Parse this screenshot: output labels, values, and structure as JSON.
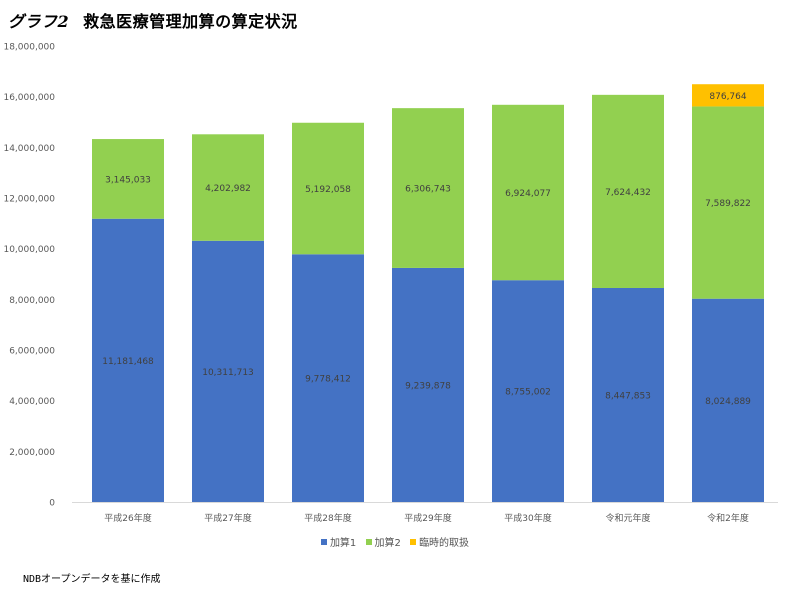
{
  "title_prefix": "グラフ2",
  "title_main": "救急医療管理加算の算定状況",
  "source_note": "NDBオープンデータを基に作成",
  "colors": {
    "kasan1": "#4472C4",
    "kasan2": "#92D050",
    "rinji": "#FFC000",
    "axis": "#D9D9D9",
    "tick_text": "#595959"
  },
  "chart_data": {
    "type": "bar",
    "stacked": true,
    "categories": [
      "平成26年度",
      "平成27年度",
      "平成28年度",
      "平成29年度",
      "平成30年度",
      "令和元年度",
      "令和2年度"
    ],
    "series": [
      {
        "name": "加算1",
        "values": [
          11181468,
          10311713,
          9778412,
          9239878,
          8755002,
          8447853,
          8024889
        ]
      },
      {
        "name": "加算2",
        "values": [
          3145033,
          4202982,
          5192058,
          6306743,
          6924077,
          7624432,
          7589822
        ]
      },
      {
        "name": "臨時的取扱",
        "values": [
          null,
          null,
          null,
          null,
          null,
          null,
          876764
        ]
      }
    ],
    "data_labels": [
      [
        "11,181,468",
        "10,311,713",
        "9,778,412",
        "9,239,878",
        "8,755,002",
        "8,447,853",
        "8,024,889"
      ],
      [
        "3,145,033",
        "4,202,982",
        "5,192,058",
        "6,306,743",
        "6,924,077",
        "7,624,432",
        "7,589,822"
      ],
      [
        "",
        "",
        "",
        "",
        "",
        "",
        "876,764"
      ]
    ],
    "ylim": [
      0,
      18000000
    ],
    "yticks": [
      0,
      2000000,
      4000000,
      6000000,
      8000000,
      10000000,
      12000000,
      14000000,
      16000000,
      18000000
    ],
    "ytick_labels": [
      "0",
      "2,000,000",
      "4,000,000",
      "6,000,000",
      "8,000,000",
      "10,000,000",
      "12,000,000",
      "14,000,000",
      "16,000,000",
      "18,000,000"
    ],
    "legend_position": "bottom",
    "grid": false
  }
}
